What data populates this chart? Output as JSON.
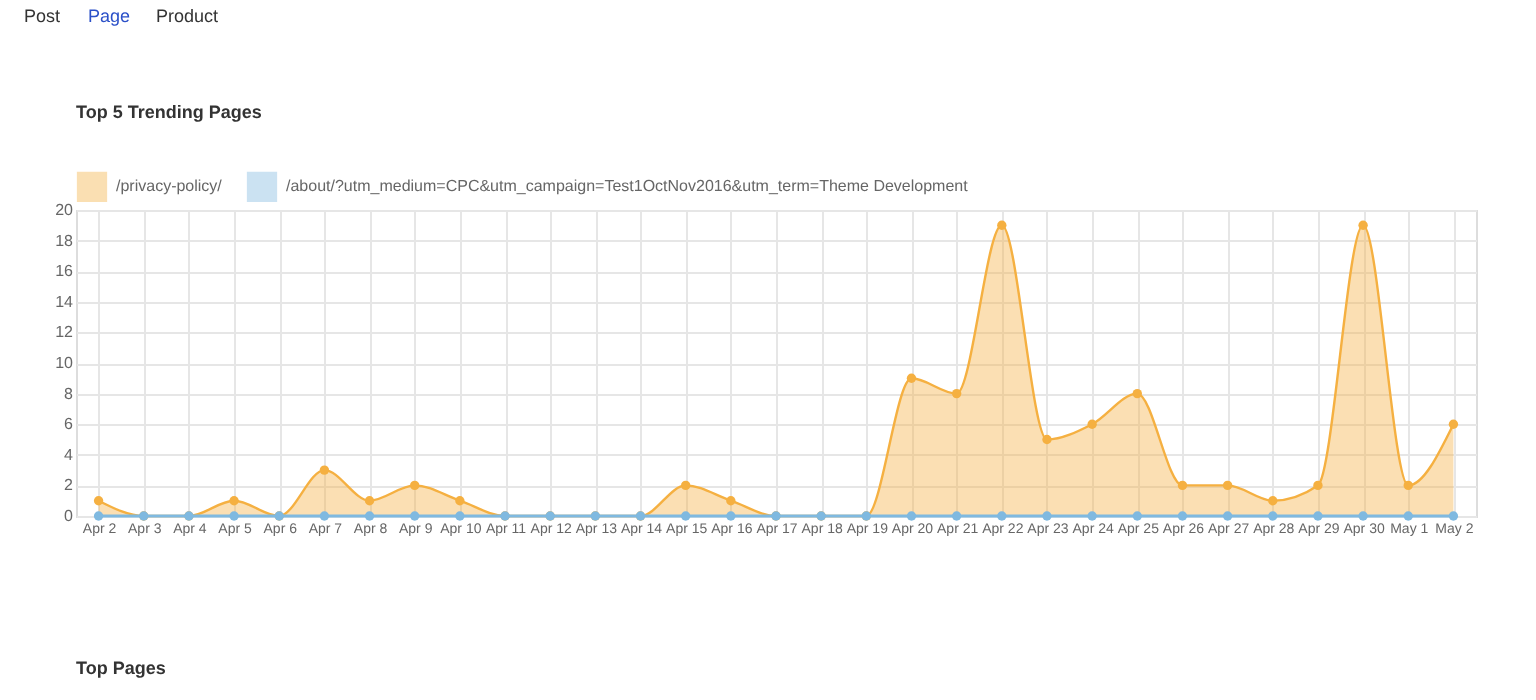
{
  "chart_data": {
    "type": "area",
    "title": "Top 5 Trending Pages",
    "annotations": [
      "Post",
      "Page",
      "Product",
      "Top Pages"
    ],
    "categories": [
      "Apr 2",
      "Apr 3",
      "Apr 4",
      "Apr 5",
      "Apr 6",
      "Apr 7",
      "Apr 8",
      "Apr 9",
      "Apr 10",
      "Apr 11",
      "Apr 12",
      "Apr 13",
      "Apr 14",
      "Apr 15",
      "Apr 16",
      "Apr 17",
      "Apr 18",
      "Apr 19",
      "Apr 20",
      "Apr 21",
      "Apr 22",
      "Apr 23",
      "Apr 24",
      "Apr 25",
      "Apr 26",
      "Apr 27",
      "Apr 28",
      "Apr 29",
      "Apr 30",
      "May 1",
      "May 2"
    ],
    "series": [
      {
        "name": "/privacy-policy/",
        "color": "#f5b041",
        "values": [
          1,
          0,
          0,
          1,
          0,
          3,
          1,
          2,
          1,
          0,
          0,
          0,
          0,
          2,
          1,
          0,
          0,
          0,
          9,
          8,
          19,
          5,
          6,
          8,
          2,
          2,
          1,
          2,
          19,
          2,
          6
        ]
      },
      {
        "name": "/about/?utm_medium=CPC&utm_campaign=Test1OctNov2016&utm_term=Theme Development",
        "color": "#7fb9e0",
        "type": "line",
        "values": [
          0,
          0,
          0,
          0,
          0,
          0,
          0,
          0,
          0,
          0,
          0,
          0,
          0,
          0,
          0,
          0,
          0,
          0,
          0,
          0,
          0,
          0,
          0,
          0,
          0,
          0,
          0,
          0,
          0,
          0,
          0
        ]
      }
    ],
    "ylim": [
      0,
      20
    ],
    "yticks": [
      0,
      2,
      4,
      6,
      8,
      10,
      12,
      14,
      16,
      18,
      20
    ],
    "grid": true,
    "legend": "top",
    "marker": "circle",
    "line_style": "solid"
  }
}
